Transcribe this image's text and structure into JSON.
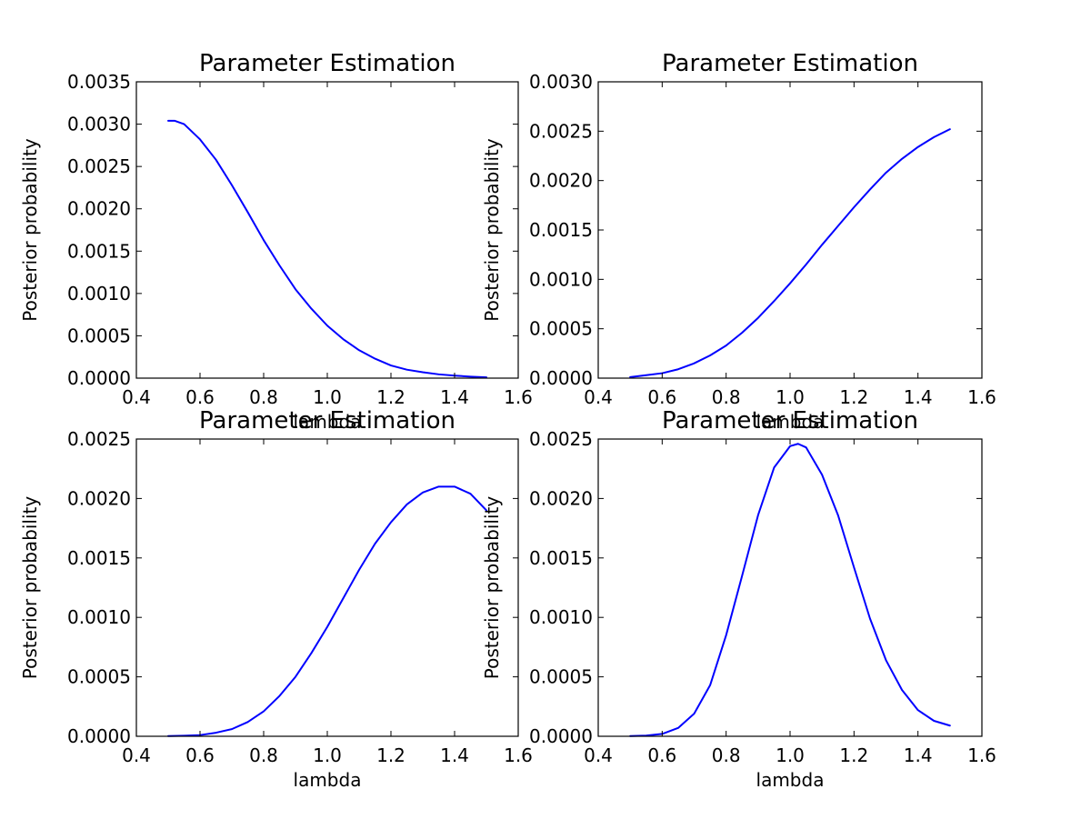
{
  "chart_data": [
    {
      "type": "line",
      "title": "Parameter Estimation",
      "xlabel": "lambda",
      "ylabel": "Posterior probability",
      "xlim": [
        0.4,
        1.6
      ],
      "ylim": [
        0,
        0.0035
      ],
      "xticks": [
        "0.4",
        "0.6",
        "0.8",
        "1.0",
        "1.2",
        "1.4",
        "1.6"
      ],
      "yticks": [
        "0.0000",
        "0.0005",
        "0.0010",
        "0.0015",
        "0.0020",
        "0.0025",
        "0.0030",
        "0.0035"
      ],
      "grid": false,
      "color": "#0000ff",
      "series": [
        {
          "x": [
            0.5,
            0.52,
            0.55,
            0.6,
            0.65,
            0.7,
            0.75,
            0.8,
            0.85,
            0.9,
            0.95,
            1.0,
            1.05,
            1.1,
            1.15,
            1.2,
            1.25,
            1.3,
            1.35,
            1.4,
            1.45,
            1.5
          ],
          "y": [
            0.00304,
            0.00304,
            0.003,
            0.00282,
            0.00258,
            0.00228,
            0.00196,
            0.00163,
            0.00133,
            0.00105,
            0.00082,
            0.00062,
            0.00046,
            0.00033,
            0.00023,
            0.00015,
            0.0001,
            7e-05,
            4.5e-05,
            3e-05,
            1.8e-05,
            1e-05
          ]
        }
      ]
    },
    {
      "type": "line",
      "title": "Parameter Estimation",
      "xlabel": "lambda",
      "ylabel": "Posterior probability",
      "xlim": [
        0.4,
        1.6
      ],
      "ylim": [
        0,
        0.003
      ],
      "xticks": [
        "0.4",
        "0.6",
        "0.8",
        "1.0",
        "1.2",
        "1.4",
        "1.6"
      ],
      "yticks": [
        "0.0000",
        "0.0005",
        "0.0010",
        "0.0015",
        "0.0020",
        "0.0025",
        "0.0030"
      ],
      "grid": false,
      "color": "#0000ff",
      "series": [
        {
          "x": [
            0.5,
            0.55,
            0.6,
            0.65,
            0.7,
            0.75,
            0.8,
            0.85,
            0.9,
            0.95,
            1.0,
            1.05,
            1.1,
            1.15,
            1.2,
            1.25,
            1.3,
            1.35,
            1.4,
            1.45,
            1.5
          ],
          "y": [
            1e-05,
            3e-05,
            5e-05,
            9e-05,
            0.00015,
            0.00023,
            0.00033,
            0.00046,
            0.00061,
            0.00078,
            0.00096,
            0.00115,
            0.00135,
            0.00154,
            0.00173,
            0.00191,
            0.00208,
            0.00222,
            0.00234,
            0.00244,
            0.00252
          ]
        }
      ]
    },
    {
      "type": "line",
      "title": "Parameter Estimation",
      "xlabel": "lambda",
      "ylabel": "Posterior probability",
      "xlim": [
        0.4,
        1.6
      ],
      "ylim": [
        0,
        0.0025
      ],
      "xticks": [
        "0.4",
        "0.6",
        "0.8",
        "1.0",
        "1.2",
        "1.4",
        "1.6"
      ],
      "yticks": [
        "0.0000",
        "0.0005",
        "0.0010",
        "0.0015",
        "0.0020",
        "0.0025"
      ],
      "grid": false,
      "color": "#0000ff",
      "series": [
        {
          "x": [
            0.5,
            0.55,
            0.6,
            0.65,
            0.7,
            0.75,
            0.8,
            0.85,
            0.9,
            0.95,
            1.0,
            1.05,
            1.1,
            1.15,
            1.2,
            1.25,
            1.3,
            1.35,
            1.4,
            1.45,
            1.5
          ],
          "y": [
            2e-06,
            5e-06,
            1e-05,
            3e-05,
            6e-05,
            0.00012,
            0.00021,
            0.00034,
            0.0005,
            0.0007,
            0.00092,
            0.00116,
            0.0014,
            0.00162,
            0.0018,
            0.00195,
            0.00205,
            0.0021,
            0.0021,
            0.00204,
            0.0019
          ]
        }
      ]
    },
    {
      "type": "line",
      "title": "Parameter Estimation",
      "xlabel": "lambda",
      "ylabel": "Posterior probability",
      "xlim": [
        0.4,
        1.6
      ],
      "ylim": [
        0,
        0.0025
      ],
      "xticks": [
        "0.4",
        "0.6",
        "0.8",
        "1.0",
        "1.2",
        "1.4",
        "1.6"
      ],
      "yticks": [
        "0.0000",
        "0.0005",
        "0.0010",
        "0.0015",
        "0.0020",
        "0.0025"
      ],
      "grid": false,
      "color": "#0000ff",
      "series": [
        {
          "x": [
            0.5,
            0.55,
            0.6,
            0.65,
            0.7,
            0.75,
            0.8,
            0.85,
            0.9,
            0.95,
            1.0,
            1.025,
            1.05,
            1.1,
            1.15,
            1.2,
            1.25,
            1.3,
            1.35,
            1.4,
            1.45,
            1.5
          ],
          "y": [
            2e-06,
            6e-06,
            2e-05,
            7e-05,
            0.00019,
            0.00043,
            0.00085,
            0.00135,
            0.00186,
            0.00226,
            0.00244,
            0.00246,
            0.00243,
            0.0022,
            0.00186,
            0.00142,
            0.00099,
            0.00064,
            0.00039,
            0.00022,
            0.00013,
            9e-05
          ]
        }
      ]
    }
  ]
}
